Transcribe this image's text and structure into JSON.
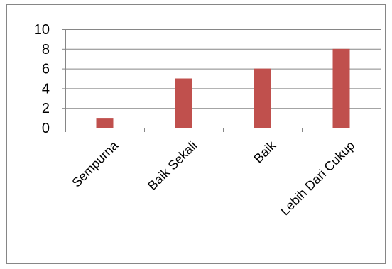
{
  "chart_data": {
    "type": "bar",
    "title": "",
    "xlabel": "",
    "ylabel": "",
    "categories": [
      "Sempurna",
      "Baik Sekali",
      "Baik",
      "Lebih Dari Cukup"
    ],
    "values": [
      1,
      5,
      6,
      8
    ],
    "ylim": [
      0,
      10
    ],
    "yticks": [
      "0",
      "2",
      "4",
      "6",
      "8",
      "10"
    ],
    "grid": true,
    "legend": "none",
    "bar_color": "#C0504D",
    "grid_color": "#868686"
  }
}
